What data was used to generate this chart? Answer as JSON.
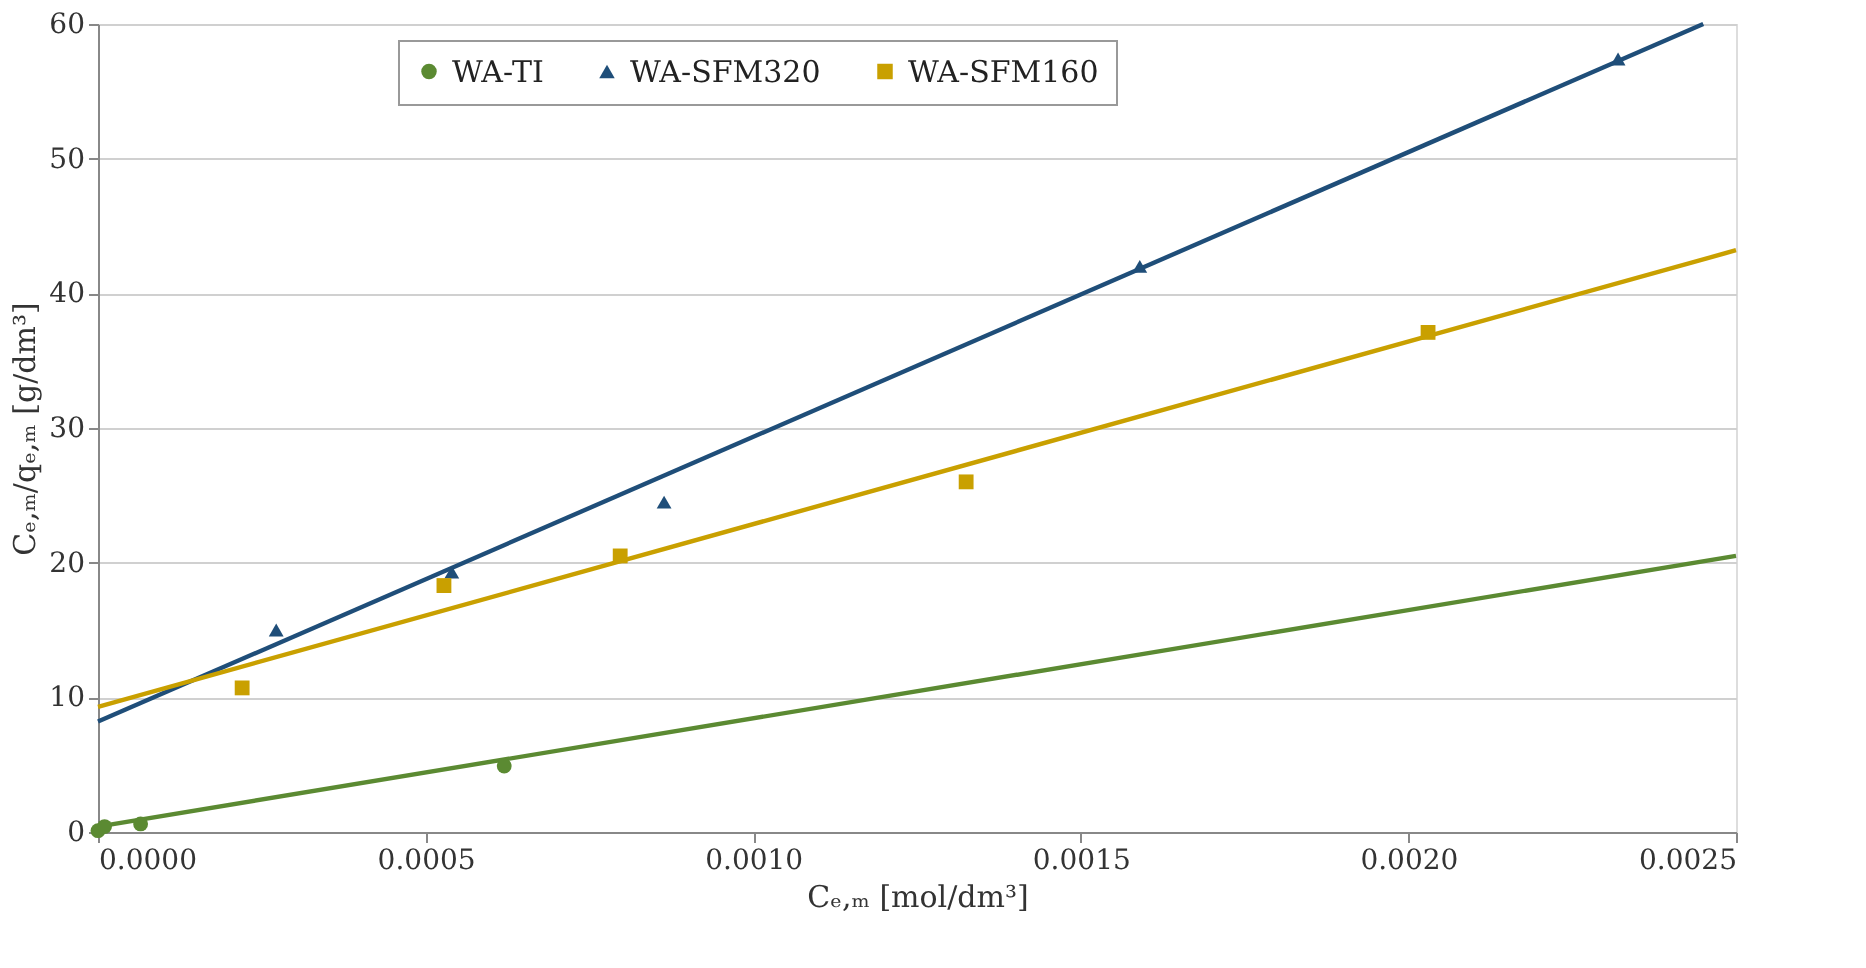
{
  "chart_data": {
    "type": "scatter",
    "xlabel": "Cₑ,ₘ [mol/dm³]",
    "ylabel": "Cₑ,ₘ/qₑ,ₘ [g/dm³]",
    "xlim": [
      0,
      0.0025
    ],
    "ylim": [
      0,
      60
    ],
    "xticks": [
      {
        "value": 0,
        "label": "0.0000"
      },
      {
        "value": 0.0005,
        "label": "0.0005"
      },
      {
        "value": 0.001,
        "label": "0.0010"
      },
      {
        "value": 0.0015,
        "label": "0.0015"
      },
      {
        "value": 0.002,
        "label": "0.0020"
      },
      {
        "value": 0.0025,
        "label": "0.0025"
      }
    ],
    "yticks": [
      0,
      10,
      20,
      30,
      40,
      50,
      60
    ],
    "grid": "y",
    "legend": "top",
    "series": [
      {
        "name": "WA-TI",
        "marker": "circle",
        "color": "#5b8a32",
        "x": [
          0,
          1e-05,
          6.5e-05,
          0.00062
        ],
        "values": [
          0.1,
          0.4,
          0.6,
          4.9
        ]
      },
      {
        "name": "WA-SFM320",
        "marker": "triangle",
        "color": "#1f4e79",
        "x": [
          0.000272,
          0.00054,
          0.000864,
          0.00159,
          0.00232
        ],
        "values": [
          15.0,
          19.3,
          24.5,
          42.0,
          57.4
        ]
      },
      {
        "name": "WA-SFM160",
        "marker": "square",
        "color": "#c9a000",
        "x": [
          0.00022,
          0.000528,
          0.000797,
          0.001325,
          0.00203
        ],
        "values": [
          10.7,
          18.3,
          20.5,
          26.0,
          37.1
        ]
      },
      {
        "type": "line",
        "color": "#5b8a32",
        "x": [
          0,
          0.0025
        ],
        "values": [
          0.4,
          20.5
        ]
      },
      {
        "type": "line",
        "color": "#1f4e79",
        "x": [
          0,
          0.00245
        ],
        "values": [
          8.2,
          60
        ]
      },
      {
        "type": "line",
        "color": "#c9a000",
        "x": [
          0,
          0.0025
        ],
        "values": [
          9.3,
          43.2
        ]
      }
    ]
  }
}
